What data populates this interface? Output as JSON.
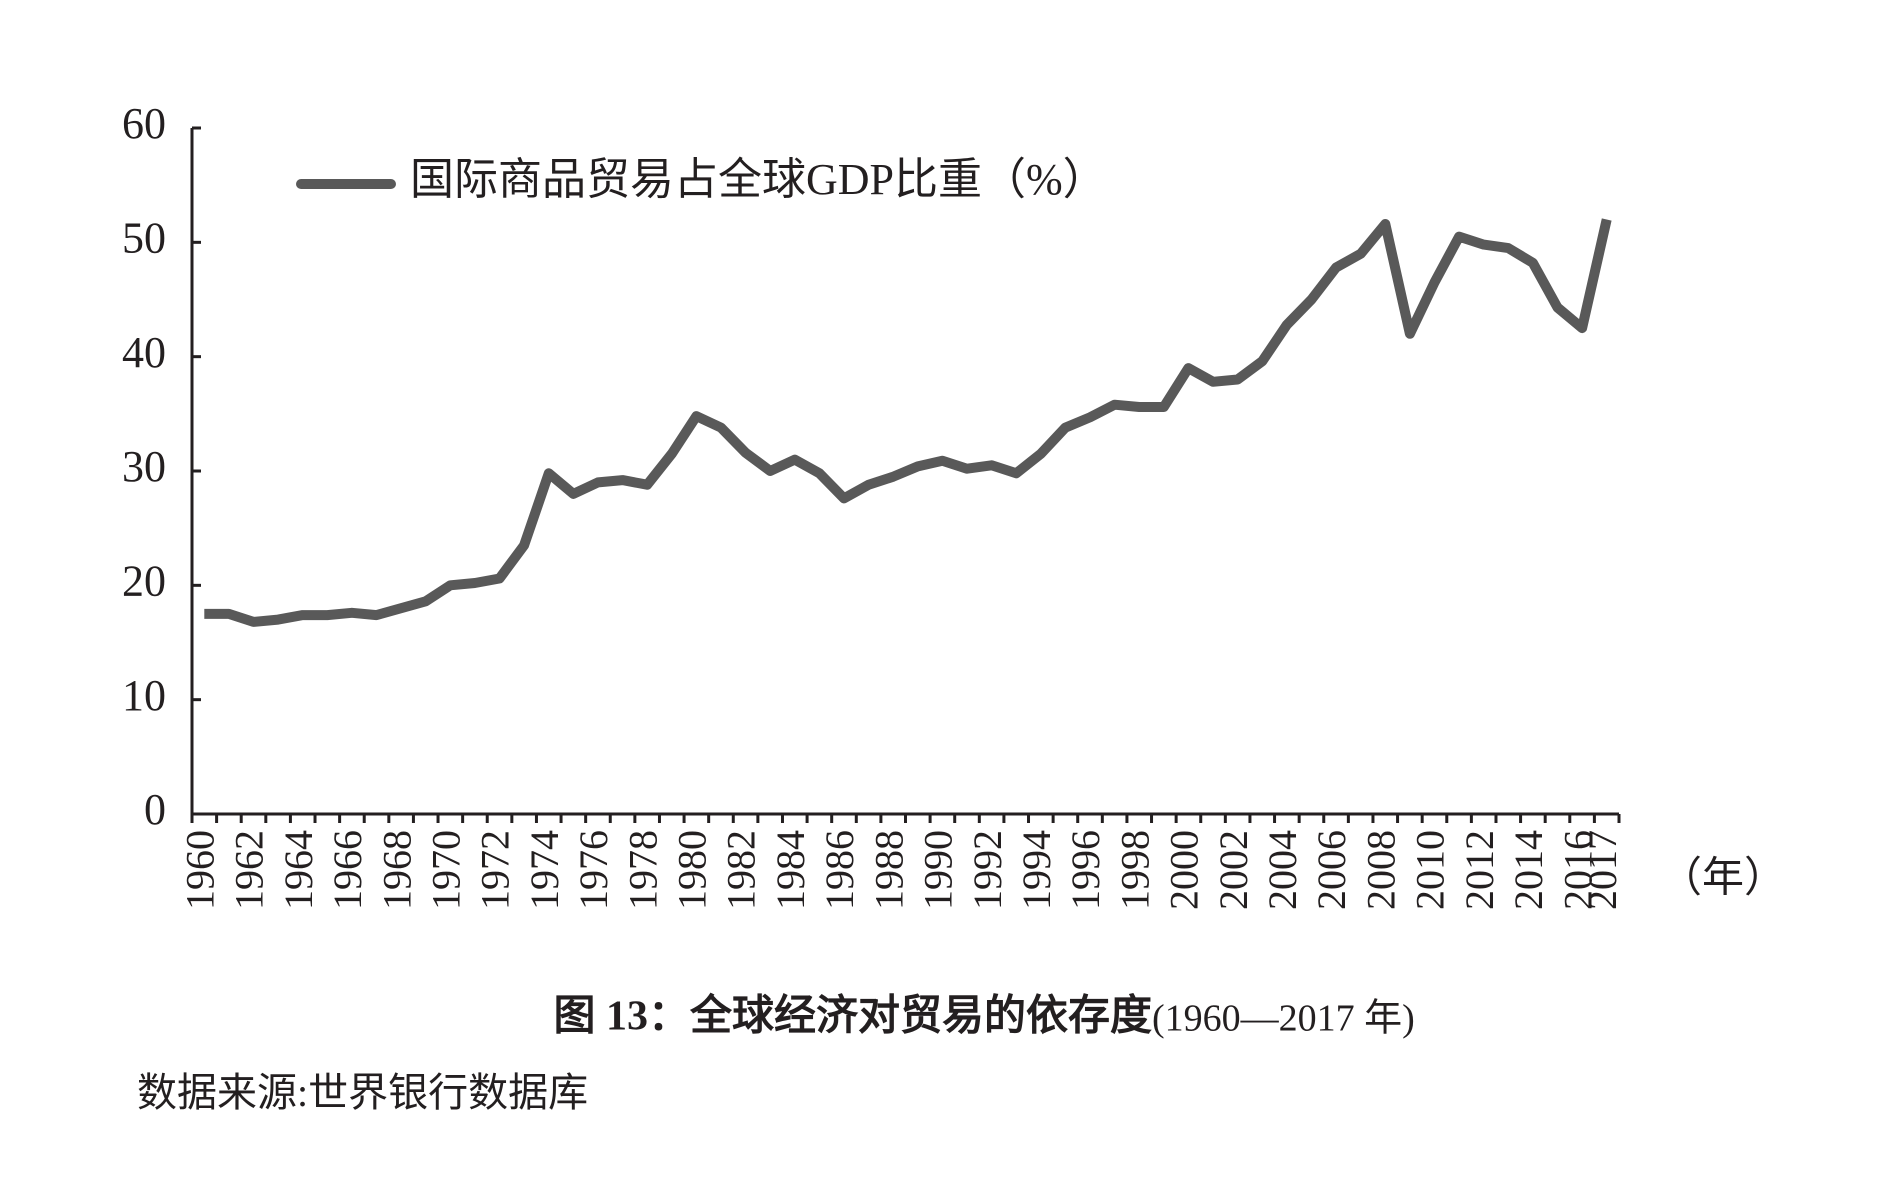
{
  "chart_data": {
    "type": "line",
    "title": "图 13：全球经济对贸易的依存度",
    "title_period": "(1960—2017 年)",
    "source": "数据来源:世界银行数据库",
    "x_unit": "（年）",
    "categories": [
      "1960",
      null,
      "1962",
      null,
      "1964",
      null,
      "1966",
      null,
      "1968",
      null,
      "1970",
      null,
      "1972",
      null,
      "1974",
      null,
      "1976",
      null,
      "1978",
      null,
      "1980",
      null,
      "1982",
      null,
      "1984",
      null,
      "1986",
      null,
      "1988",
      null,
      "1990",
      null,
      "1992",
      null,
      "1994",
      null,
      "1996",
      null,
      "1998",
      null,
      "2000",
      null,
      "2002",
      null,
      "2004",
      null,
      "2006",
      null,
      "2008",
      null,
      "2010",
      null,
      "2012",
      null,
      "2014",
      null,
      "2016",
      "2017"
    ],
    "series": [
      {
        "name": "国际商品贸易占全球GDP比重（%）",
        "color": "#595959",
        "values": [
          17.5,
          17.5,
          16.8,
          17.0,
          17.4,
          17.4,
          17.6,
          17.4,
          18.0,
          18.6,
          20.0,
          20.2,
          20.6,
          23.5,
          29.8,
          28.0,
          29.0,
          29.2,
          28.8,
          31.5,
          34.8,
          33.8,
          31.6,
          30.0,
          31.0,
          29.8,
          27.6,
          28.8,
          29.5,
          30.4,
          30.9,
          30.2,
          30.5,
          29.8,
          31.5,
          33.8,
          34.7,
          35.8,
          35.6,
          35.6,
          39.0,
          37.8,
          38.0,
          39.6,
          42.8,
          45.0,
          47.8,
          49.0,
          51.6,
          42.0,
          46.5,
          50.5,
          49.8,
          49.5,
          48.2,
          44.3,
          42.5,
          52.0
        ]
      }
    ],
    "ylim": [
      0,
      60
    ],
    "yticks": [
      0,
      10,
      20,
      30,
      40,
      50,
      60
    ],
    "grid": false,
    "legend": "top-left"
  }
}
